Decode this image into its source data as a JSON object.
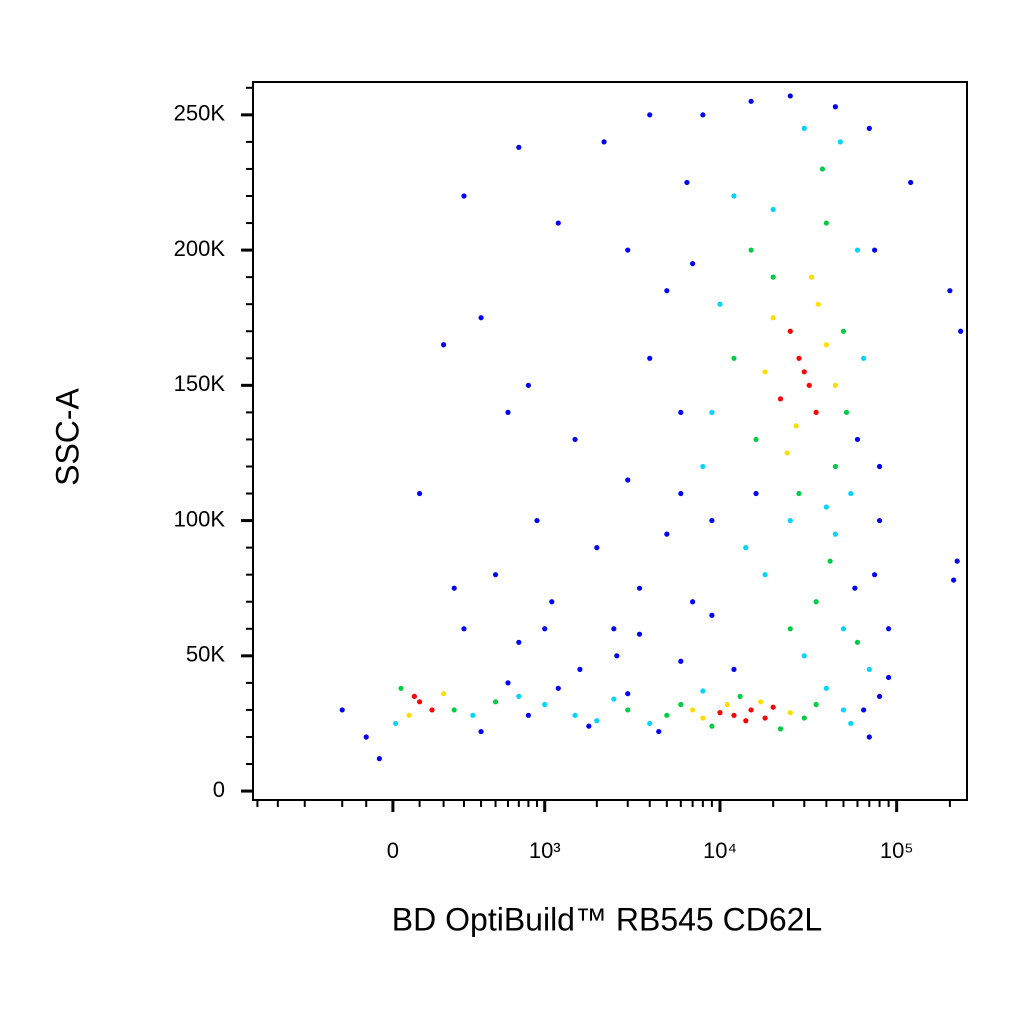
{
  "chart_data": {
    "type": "scatter",
    "x_label": "BD OptiBuild™ RB545 CD62L",
    "y_label": "SSC-A",
    "x_scale": "biexponential",
    "xlim": [
      -850,
      250000
    ],
    "ylim": [
      -3300,
      262144
    ],
    "xticks": [
      0,
      {
        "value": 1000,
        "label": "10³"
      },
      {
        "value": 10000,
        "label": "10⁴"
      },
      {
        "value": 100000,
        "label": "10⁵"
      }
    ],
    "x_minor_ticks": [
      -800,
      -600,
      -400,
      -200,
      -100,
      100,
      200,
      300,
      400,
      500,
      600,
      700,
      800,
      900,
      2000,
      3000,
      4000,
      5000,
      6000,
      7000,
      8000,
      9000,
      20000,
      30000,
      40000,
      50000,
      60000,
      70000,
      80000,
      90000,
      200000
    ],
    "yticks": [
      0,
      {
        "value": 50000,
        "label": "50K"
      },
      {
        "value": 100000,
        "label": "100K"
      },
      {
        "value": 150000,
        "label": "150K"
      },
      {
        "value": 200000,
        "label": "200K"
      },
      {
        "value": 250000,
        "label": "250K"
      }
    ],
    "y_minor_ticks": [
      10000,
      20000,
      30000,
      40000,
      60000,
      70000,
      80000,
      90000,
      110000,
      120000,
      130000,
      140000,
      160000,
      170000,
      180000,
      190000,
      210000,
      220000,
      230000,
      240000,
      260000
    ],
    "series": [
      {
        "color": "#0000ff",
        "x": [
          -200,
          -100,
          400,
          600,
          800,
          1200,
          1800,
          3000,
          4500,
          70000,
          80000,
          65000,
          90000,
          -50,
          300,
          500,
          700,
          900,
          1100,
          1500,
          2000,
          2500,
          3000,
          3500,
          4000,
          5000,
          6000,
          7000,
          800,
          600,
          400,
          300,
          700,
          1200,
          2200,
          3000,
          4000,
          5000,
          6500,
          8000,
          15000,
          25000,
          45000,
          70000,
          75000,
          80000,
          75000,
          90000,
          120000,
          200000,
          210000,
          230000,
          220000,
          6000,
          9000,
          12000,
          16000,
          100,
          200,
          250,
          1000,
          1600,
          2600,
          3500,
          6000,
          7000,
          9000,
          60000,
          58000,
          80000
        ],
        "values": [
          30000,
          20000,
          22000,
          40000,
          28000,
          38000,
          24000,
          36000,
          22000,
          20000,
          35000,
          30000,
          42000,
          12000,
          60000,
          80000,
          55000,
          100000,
          70000,
          130000,
          90000,
          60000,
          115000,
          75000,
          160000,
          95000,
          140000,
          70000,
          150000,
          140000,
          175000,
          220000,
          238000,
          210000,
          240000,
          200000,
          250000,
          185000,
          225000,
          250000,
          255000,
          257000,
          253000,
          245000,
          200000,
          120000,
          80000,
          60000,
          225000,
          185000,
          78000,
          170000,
          85000,
          48000,
          65000,
          45000,
          110000,
          110000,
          165000,
          75000,
          60000,
          45000,
          50000,
          58000,
          110000,
          195000,
          100000,
          130000,
          75000,
          100000
        ]
      },
      {
        "color": "#00d4ff",
        "x": [
          350,
          10,
          1000,
          1500,
          2500,
          4000,
          40000,
          50000,
          55000,
          8000,
          60000,
          10000,
          12000,
          48000,
          30000,
          9000,
          55000,
          25000,
          65000,
          8000,
          18000,
          50000,
          70000,
          30000,
          14000,
          45000,
          700,
          2000,
          20000,
          40000
        ],
        "values": [
          28000,
          25000,
          32000,
          28000,
          34000,
          25000,
          38000,
          30000,
          25000,
          37000,
          200000,
          180000,
          220000,
          240000,
          245000,
          140000,
          110000,
          100000,
          160000,
          120000,
          80000,
          60000,
          45000,
          50000,
          90000,
          95000,
          35000,
          26000,
          215000,
          105000
        ]
      },
      {
        "color": "#00cc44",
        "x": [
          250,
          30,
          5000,
          6000,
          30000,
          35000,
          9000,
          13000,
          3000,
          22000,
          15000,
          40000,
          50000,
          16000,
          45000,
          12000,
          38000,
          28000,
          52000,
          20000,
          35000,
          60000,
          25000,
          42000,
          500
        ],
        "values": [
          30000,
          38000,
          28000,
          32000,
          27000,
          32000,
          24000,
          35000,
          30000,
          23000,
          200000,
          210000,
          170000,
          130000,
          120000,
          160000,
          230000,
          110000,
          140000,
          190000,
          70000,
          55000,
          60000,
          85000,
          33000
        ]
      },
      {
        "color": "#ffdd00",
        "x": [
          200,
          60,
          8000,
          25000,
          11000,
          17000,
          7000,
          40000,
          20000,
          27000,
          36000,
          24000,
          33000,
          18000,
          45000
        ],
        "values": [
          36000,
          28000,
          27000,
          29000,
          32000,
          33000,
          30000,
          165000,
          175000,
          135000,
          180000,
          125000,
          190000,
          155000,
          150000
        ]
      },
      {
        "color": "#ff0000",
        "x": [
          100,
          150,
          80,
          12000,
          15000,
          18000,
          10000,
          20000,
          14000,
          28000,
          32000,
          25000,
          35000,
          30000,
          22000
        ],
        "values": [
          33000,
          30000,
          35000,
          28000,
          30000,
          27000,
          29000,
          31000,
          26000,
          160000,
          150000,
          170000,
          140000,
          155000,
          145000
        ]
      }
    ]
  }
}
